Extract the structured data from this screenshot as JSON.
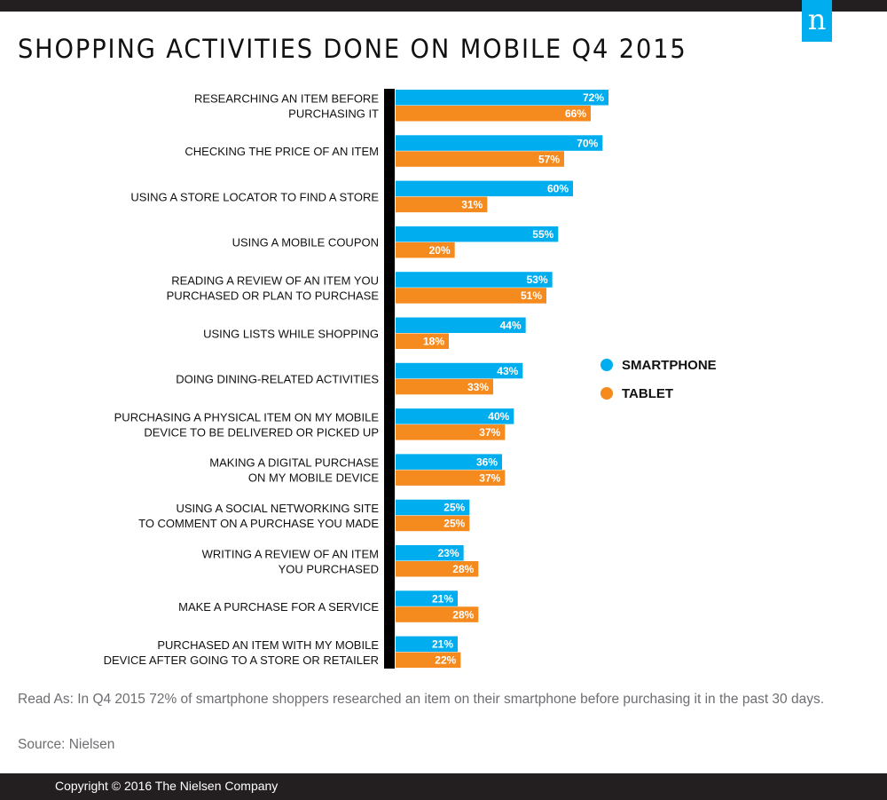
{
  "header": {
    "logo_text": "n",
    "title": "SHOPPING ACTIVITIES DONE ON MOBILE Q4 2015"
  },
  "colors": {
    "smartphone": "#00adee",
    "tablet": "#f58a1f",
    "axis": "#000000",
    "band": "#231f20"
  },
  "chart_data": {
    "type": "bar",
    "orientation": "horizontal",
    "title": "SHOPPING ACTIVITIES DONE ON MOBILE Q4 2015",
    "xlabel": "",
    "ylabel": "",
    "xlim": [
      0,
      100
    ],
    "grid": false,
    "legend_position": "right",
    "value_format": "{v}%",
    "categories": [
      [
        "RESEARCHING AN ITEM BEFORE",
        "PURCHASING IT"
      ],
      [
        "CHECKING THE PRICE OF AN ITEM"
      ],
      [
        "USING A STORE LOCATOR TO FIND A STORE"
      ],
      [
        "USING A MOBILE COUPON"
      ],
      [
        "READING A REVIEW OF AN ITEM YOU",
        "PURCHASED OR PLAN TO PURCHASE"
      ],
      [
        "USING LISTS WHILE SHOPPING"
      ],
      [
        "DOING DINING-RELATED ACTIVITIES"
      ],
      [
        "PURCHASING A PHYSICAL ITEM ON MY MOBILE",
        "DEVICE TO BE DELIVERED OR PICKED UP"
      ],
      [
        "MAKING A DIGITAL PURCHASE",
        "ON MY MOBILE DEVICE"
      ],
      [
        "USING A SOCIAL NETWORKING SITE",
        "TO COMMENT ON A PURCHASE YOU MADE"
      ],
      [
        "WRITING A REVIEW OF AN ITEM",
        "YOU PURCHASED"
      ],
      [
        "MAKE A PURCHASE FOR A SERVICE"
      ],
      [
        "PURCHASED AN ITEM WITH MY MOBILE",
        "DEVICE AFTER GOING TO A STORE OR RETAILER"
      ]
    ],
    "series": [
      {
        "name": "SMARTPHONE",
        "color": "#00adee",
        "values": [
          72,
          70,
          60,
          55,
          53,
          44,
          43,
          40,
          36,
          25,
          23,
          21,
          21
        ]
      },
      {
        "name": "TABLET",
        "color": "#f58a1f",
        "values": [
          66,
          57,
          31,
          20,
          51,
          18,
          33,
          37,
          37,
          25,
          28,
          28,
          22
        ]
      }
    ]
  },
  "footer": {
    "read_as": "Read As: In Q4 2015 72% of smartphone shoppers researched an item on their smartphone before purchasing it in the past 30 days.",
    "source": "Source: Nielsen",
    "copyright": "Copyright © 2016 The Nielsen Company"
  }
}
